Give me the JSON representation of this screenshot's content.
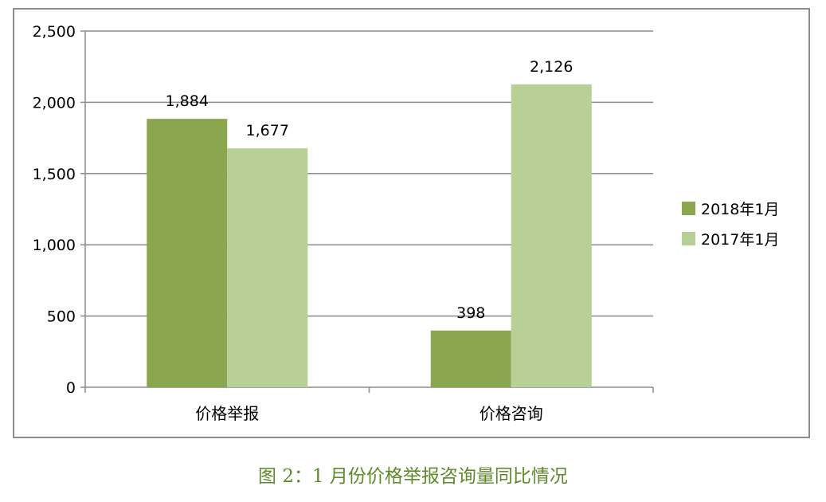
{
  "chart_data": {
    "type": "bar",
    "categories": [
      "价格举报",
      "价格咨询"
    ],
    "series": [
      {
        "name": "2018年1月",
        "values": [
          1884,
          398
        ],
        "color": "#8aa64f"
      },
      {
        "name": "2017年1月",
        "values": [
          1677,
          2126
        ],
        "color": "#b8cf96"
      }
    ],
    "data_labels": [
      [
        "1,884",
        "398"
      ],
      [
        "1,677",
        "2,126"
      ]
    ],
    "yticks": [
      "0",
      "500",
      "1,000",
      "1,500",
      "2,000",
      "2,500"
    ],
    "ylim": [
      0,
      2500
    ],
    "grid": true,
    "legend": "right"
  },
  "caption": "图 2：1 月份价格举报咨询量同比情况"
}
